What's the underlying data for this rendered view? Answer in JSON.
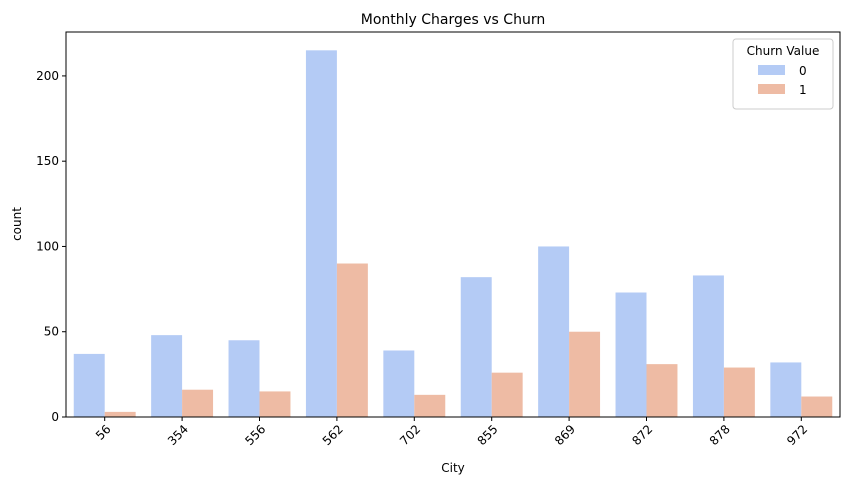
{
  "chart_data": {
    "type": "bar",
    "title": "Monthly Charges vs Churn",
    "xlabel": "City",
    "ylabel": "count",
    "categories": [
      "56",
      "354",
      "556",
      "562",
      "702",
      "855",
      "869",
      "872",
      "878",
      "972"
    ],
    "series": [
      {
        "name": "0",
        "color": "#b4cbf5",
        "values": [
          37,
          48,
          45,
          215,
          39,
          82,
          100,
          73,
          83,
          32
        ]
      },
      {
        "name": "1",
        "color": "#eebba4",
        "values": [
          3,
          16,
          15,
          90,
          13,
          26,
          50,
          31,
          29,
          12
        ]
      }
    ],
    "ylim": [
      0,
      225.75
    ],
    "yticks": [
      0,
      50,
      100,
      150,
      200
    ],
    "legend": {
      "title": "Churn Value",
      "placement": "top-right"
    },
    "grid": false
  }
}
